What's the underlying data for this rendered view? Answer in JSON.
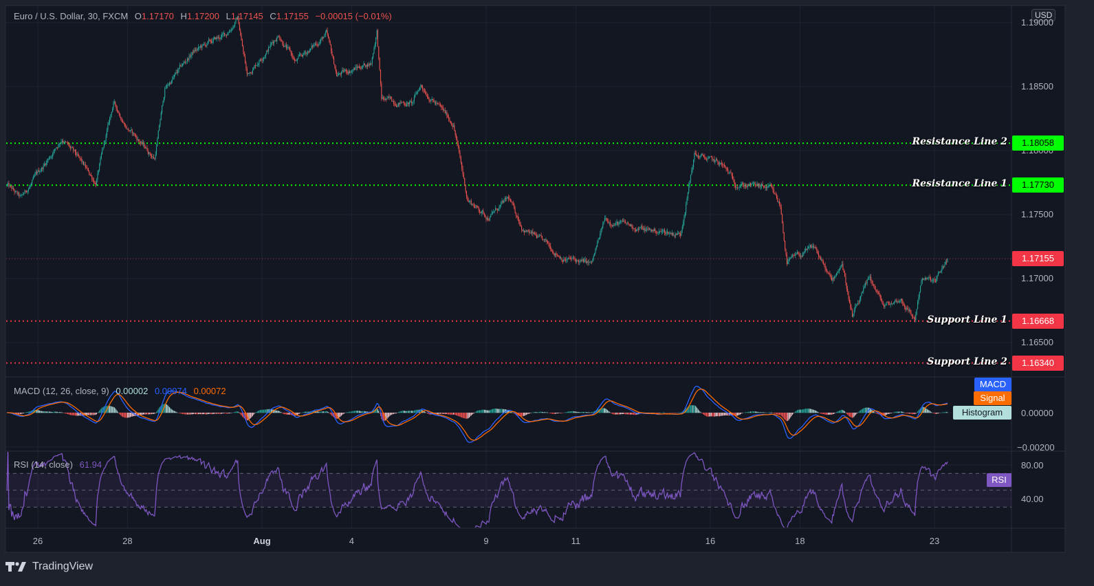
{
  "header": {
    "symbol": "Euro / U.S. Dollar, 30, FXCM",
    "o_label": "O",
    "o": "1.17170",
    "h_label": "H",
    "h": "1.17200",
    "l_label": "L",
    "l": "1.17145",
    "c_label": "C",
    "c": "1.17155",
    "change": "−0.00015 (−0.01%)"
  },
  "currency_badge": "USD",
  "chart_data": {
    "type": "candlestick",
    "interval": "30",
    "colors": {
      "up": "#26a69a",
      "down": "#ef5350",
      "background": "#131722",
      "grid": "#20242f"
    },
    "price_axis_ticks": [
      "1.19000",
      "1.18500",
      "1.18000",
      "1.17500",
      "1.17000",
      "1.16500"
    ],
    "price_range": [
      1.1615,
      1.191
    ],
    "x_ticks": [
      "26",
      "28",
      "Aug",
      "4",
      "9",
      "11",
      "16",
      "18",
      "23"
    ],
    "approx_close_path": [
      {
        "t": "Jul 23 07:30",
        "p": 1.1773
      },
      {
        "t": "Jul 23 15:00",
        "p": 1.1762
      },
      {
        "t": "Jul 26 13:00",
        "p": 1.181
      },
      {
        "t": "Jul 27 07:00",
        "p": 1.1775
      },
      {
        "t": "Jul 27 16:30",
        "p": 1.1837
      },
      {
        "t": "Jul 28 00:00",
        "p": 1.1818
      },
      {
        "t": "Jul 28 14:30",
        "p": 1.1794
      },
      {
        "t": "Jul 28 20:00",
        "p": 1.1848
      },
      {
        "t": "Jul 29 11:00",
        "p": 1.1877
      },
      {
        "t": "Jul 30 05:00",
        "p": 1.1891
      },
      {
        "t": "Jul 30 11:00",
        "p": 1.1904
      },
      {
        "t": "Jul 30 16:00",
        "p": 1.1859
      },
      {
        "t": "Aug 2 09:00",
        "p": 1.1891
      },
      {
        "t": "Aug 2 18:00",
        "p": 1.1869
      },
      {
        "t": "Aug 3 10:30",
        "p": 1.1891
      },
      {
        "t": "Aug 3 16:00",
        "p": 1.1859
      },
      {
        "t": "Aug 4 10:30",
        "p": 1.1869
      },
      {
        "t": "Aug 4 13:30",
        "p": 1.1894
      },
      {
        "t": "Aug 4 16:00",
        "p": 1.184
      },
      {
        "t": "Aug 5 08:30",
        "p": 1.1837
      },
      {
        "t": "Aug 5 13:00",
        "p": 1.1851
      },
      {
        "t": "Aug 6 06:30",
        "p": 1.1821
      },
      {
        "t": "Aug 6 14:00",
        "p": 1.1762
      },
      {
        "t": "Aug 9 01:00",
        "p": 1.1748
      },
      {
        "t": "Aug 9 12:00",
        "p": 1.1762
      },
      {
        "t": "Aug 9 19:30",
        "p": 1.174
      },
      {
        "t": "Aug 10 10:30",
        "p": 1.1724
      },
      {
        "t": "Aug 10 17:30",
        "p": 1.1716
      },
      {
        "t": "Aug 11 08:30",
        "p": 1.1711
      },
      {
        "t": "Aug 11 15:30",
        "p": 1.1746
      },
      {
        "t": "Aug 12 13:30",
        "p": 1.1738
      },
      {
        "t": "Aug 13 08:00",
        "p": 1.1735
      },
      {
        "t": "Aug 13 15:30",
        "p": 1.1797
      },
      {
        "t": "Aug 16 06:00",
        "p": 1.1789
      },
      {
        "t": "Aug 16 13:30",
        "p": 1.1775
      },
      {
        "t": "Aug 17 08:00",
        "p": 1.177
      },
      {
        "t": "Aug 17 13:30",
        "p": 1.1756
      },
      {
        "t": "Aug 17 17:00",
        "p": 1.1713
      },
      {
        "t": "Aug 18 08:00",
        "p": 1.1724
      },
      {
        "t": "Aug 18 17:00",
        "p": 1.1697
      },
      {
        "t": "Aug 18 22:30",
        "p": 1.1713
      },
      {
        "t": "Aug 19 04:00",
        "p": 1.167
      },
      {
        "t": "Aug 19 13:30",
        "p": 1.17
      },
      {
        "t": "Aug 19 21:00",
        "p": 1.1678
      },
      {
        "t": "Aug 20 06:00",
        "p": 1.1684
      },
      {
        "t": "Aug 20 13:30",
        "p": 1.1668
      },
      {
        "t": "Aug 20 17:00",
        "p": 1.17
      },
      {
        "t": "Aug 23 00:30",
        "p": 1.1697
      },
      {
        "t": "Aug 23 07:00",
        "p": 1.17155
      }
    ],
    "levels": [
      {
        "label": "Resistance Line 2",
        "price": "1.18058",
        "color": "#00ff00",
        "text_color": "#000000"
      },
      {
        "label": "Resistance Line 1",
        "price": "1.17730",
        "color": "#00ff00",
        "text_color": "#000000"
      },
      {
        "label": "",
        "price": "1.17155",
        "color": "#f23645",
        "text_color": "#ffffff"
      },
      {
        "label": "Support Line 1",
        "price": "1.16668",
        "color": "#f23645",
        "text_color": "#ffffff"
      },
      {
        "label": "Support Line 2",
        "price": "1.16340",
        "color": "#f23645",
        "text_color": "#ffffff"
      }
    ]
  },
  "macd": {
    "title": "MACD (12, 26, close, 9)",
    "histogram_value": "0.00002",
    "macd_value": "0.00074",
    "signal_value": "0.00072",
    "axis_ticks": [
      "0.00000",
      "−0.00200"
    ],
    "tags": {
      "macd": "MACD",
      "signal": "Signal",
      "histogram": "Histogram"
    },
    "colors": {
      "macd": "#2962ff",
      "signal": "#ff6d00",
      "histogram_tag": "#b2dfdb"
    }
  },
  "rsi": {
    "title": "RSI (14, close)",
    "value": "61.94",
    "axis_ticks": [
      "80.00",
      "40.00"
    ],
    "tag": "RSI",
    "color": "#7e57c2",
    "bands": [
      70,
      50,
      30
    ]
  },
  "footer": {
    "brand": "TradingView"
  }
}
